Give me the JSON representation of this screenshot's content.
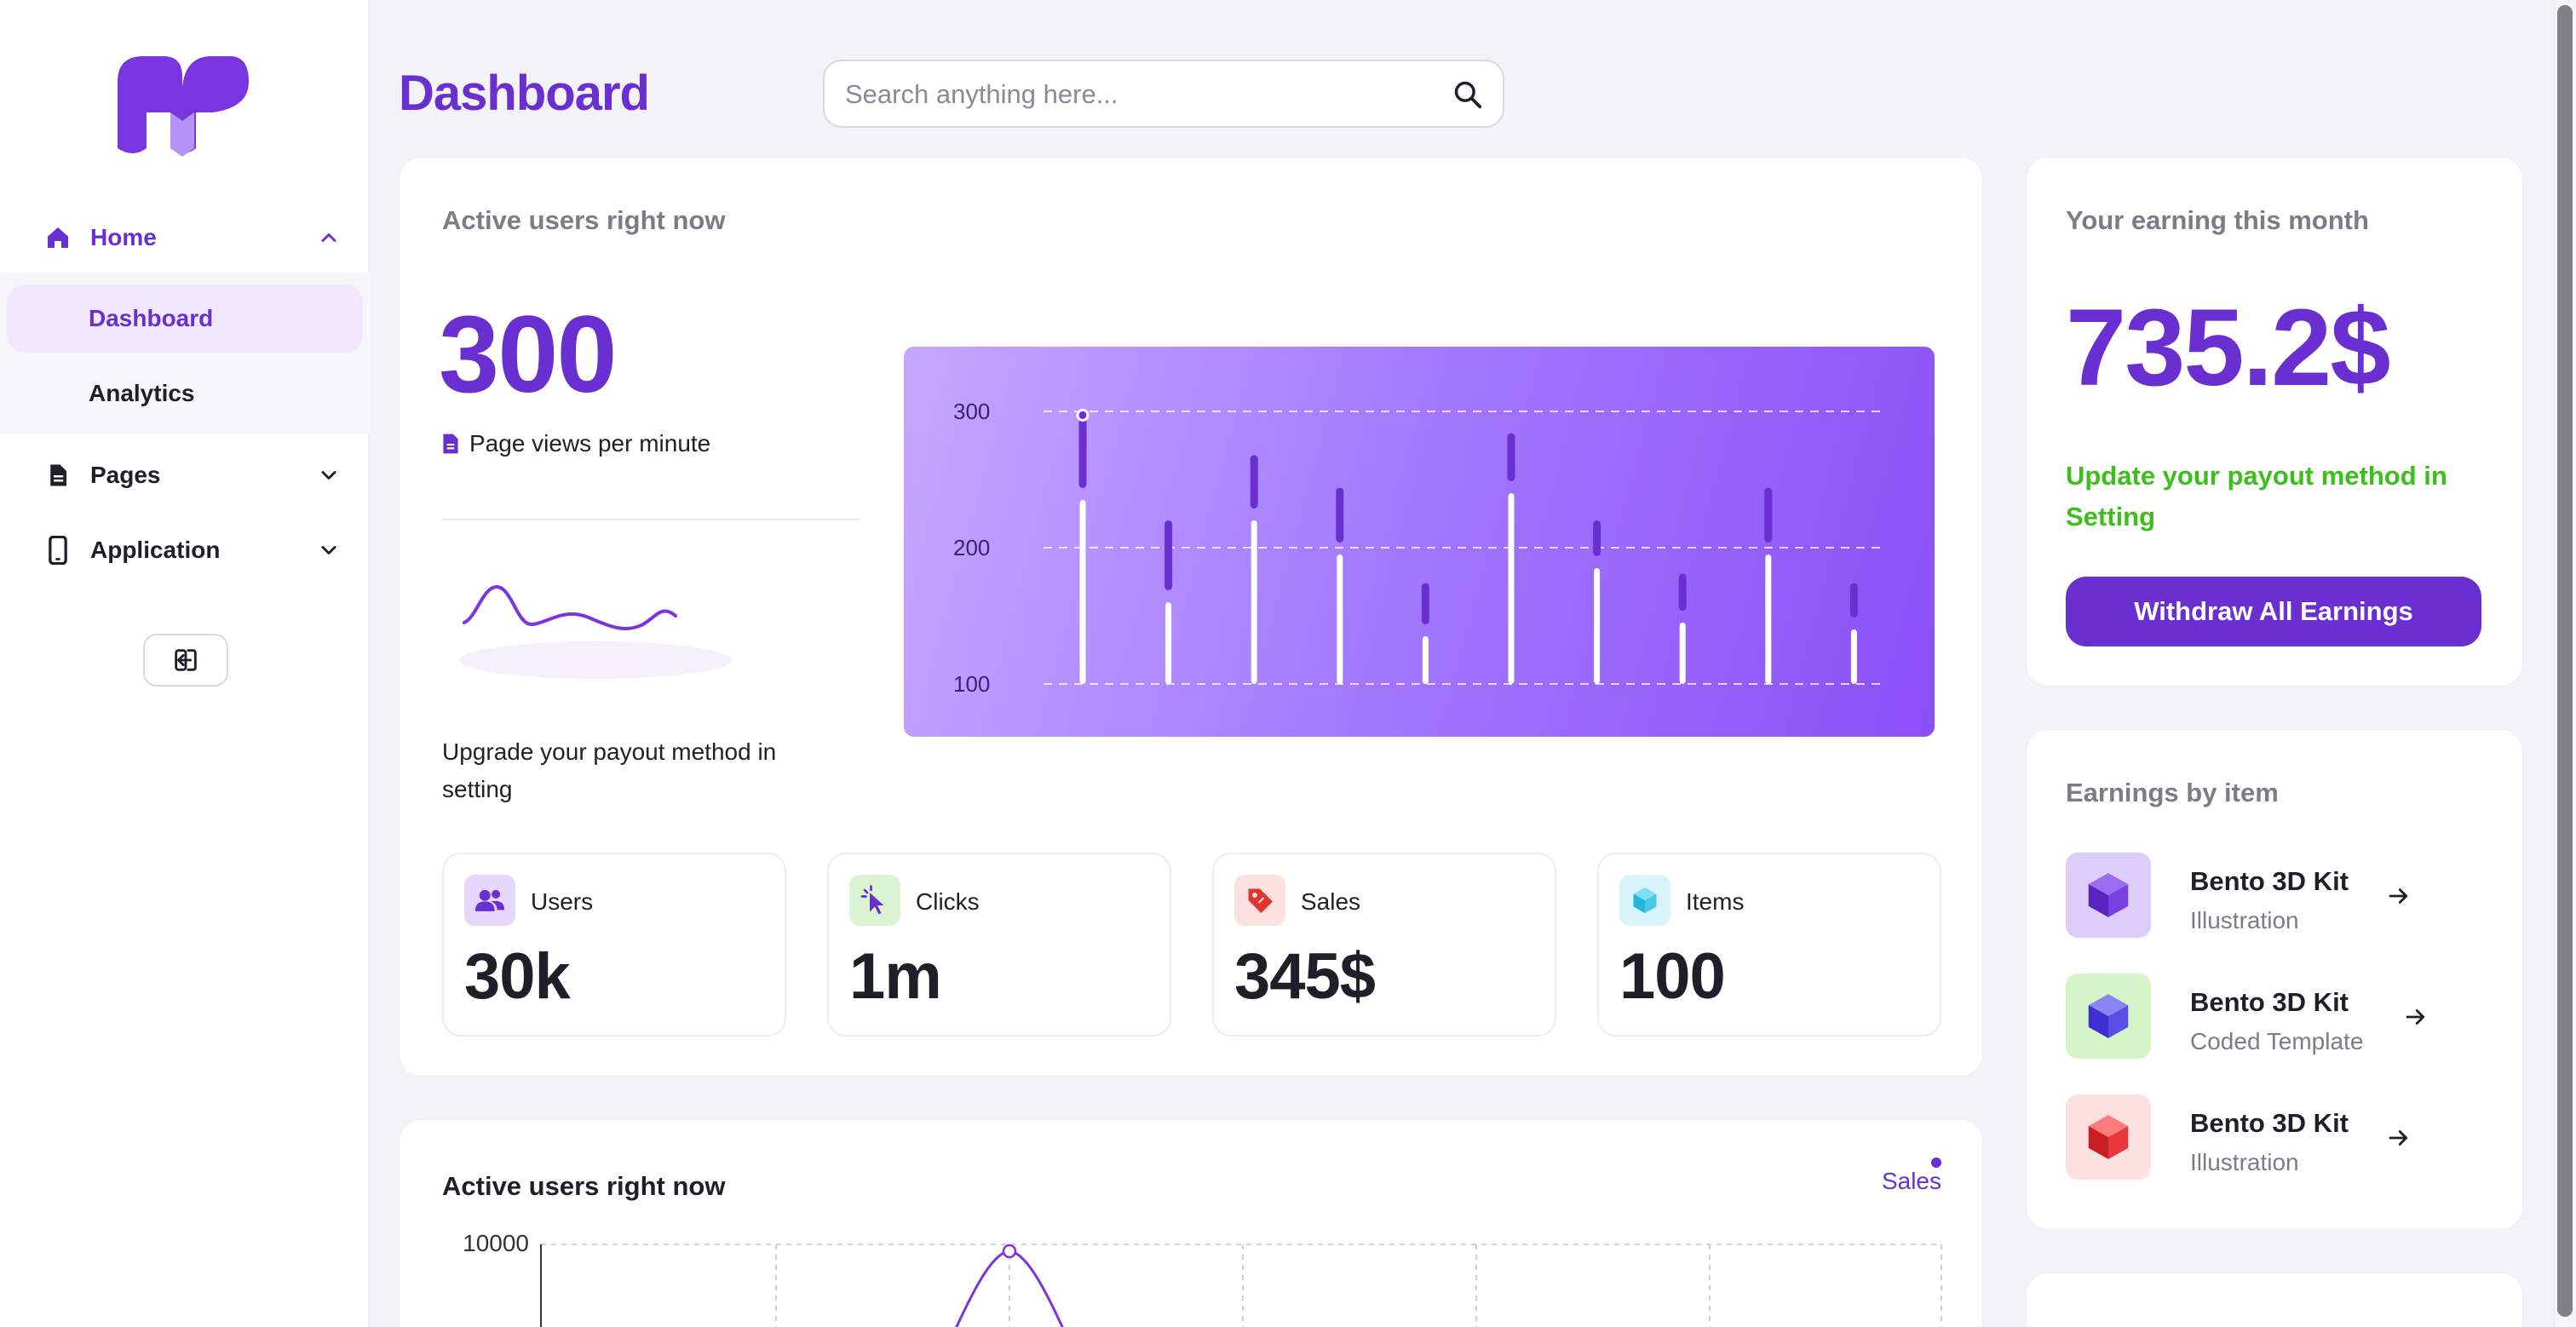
{
  "sidebar": {
    "items": [
      {
        "label": "Home",
        "icon": "home-icon"
      },
      {
        "label": "Dashboard"
      },
      {
        "label": "Analytics"
      },
      {
        "label": "Pages",
        "icon": "file-icon"
      },
      {
        "label": "Application",
        "icon": "phone-icon"
      }
    ],
    "logout_icon": "logout-icon"
  },
  "header": {
    "title": "Dashboard",
    "search_placeholder": "Search anything here..."
  },
  "active_users": {
    "label": "Active users right now",
    "value": "300",
    "page_views_label": "Page views per minute",
    "upgrade_text": "Upgrade your payout method in setting"
  },
  "stats": [
    {
      "label": "Users",
      "value": "30k",
      "icon": "users-icon"
    },
    {
      "label": "Clicks",
      "value": "1m",
      "icon": "cursor-icon"
    },
    {
      "label": "Sales",
      "value": "345$",
      "icon": "tag-icon"
    },
    {
      "label": "Items",
      "value": "100",
      "icon": "cube-icon"
    }
  ],
  "earnings": {
    "label": "Your earning this month",
    "value": "735.2$",
    "note": "Update your payout method in Setting",
    "button": "Withdraw All Earnings"
  },
  "earnings_by_item": {
    "label": "Earnings by item",
    "items": [
      {
        "name": "Bento 3D Kit",
        "sub": "Illustration",
        "color": "#6a2fd0"
      },
      {
        "name": "Bento 3D Kit",
        "sub": "Coded Template",
        "color": "#5b4ee8"
      },
      {
        "name": "Bento 3D Kit",
        "sub": "Illustration",
        "color": "#e8383d"
      }
    ]
  },
  "bottom_chart": {
    "title": "Active users right now",
    "legend": "Sales",
    "y_top_label": "10000"
  },
  "chart_data": [
    {
      "type": "bar",
      "y_ticks": [
        "300",
        "200",
        "100"
      ],
      "ylim": [
        100,
        300
      ],
      "series": [
        {
          "values": [
            235,
            160,
            220,
            195,
            135,
            240,
            185,
            145,
            195,
            140
          ]
        },
        {
          "values": [
            296,
            220,
            268,
            244,
            174,
            284,
            220,
            181,
            244,
            174
          ]
        }
      ]
    },
    {
      "type": "line",
      "y_ticks": [
        "10000"
      ],
      "series": [
        {
          "name": "Sales"
        }
      ]
    }
  ],
  "colors": {
    "brand": "#6a2fd0",
    "success": "#3bbf1a"
  }
}
